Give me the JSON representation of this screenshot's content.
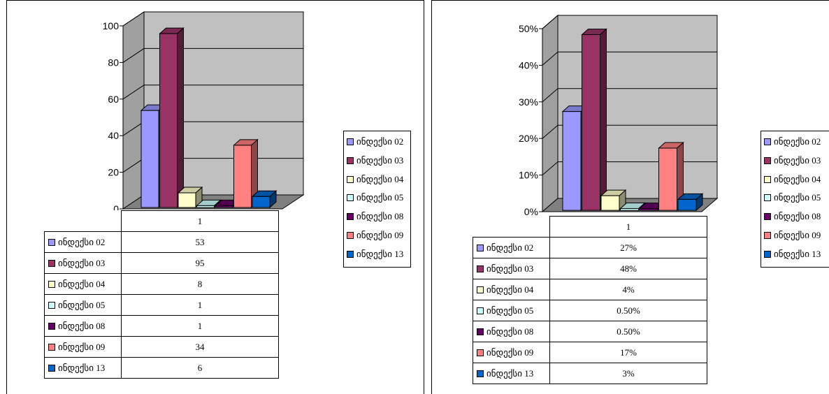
{
  "charts": [
    {
      "type": "bar",
      "category": "1",
      "yticks": [
        "0",
        "20",
        "40",
        "60",
        "80",
        "100"
      ],
      "ylim": [
        0,
        100
      ],
      "series": [
        {
          "name": "ინდექსი  02",
          "value": 53,
          "label": "53",
          "color": "#9999ff"
        },
        {
          "name": "ინდექსი  03",
          "value": 95,
          "label": "95",
          "color": "#993366"
        },
        {
          "name": "ინდექსი  04",
          "value": 8,
          "label": "8",
          "color": "#ffffcc"
        },
        {
          "name": "ინდექსი  05",
          "value": 1,
          "label": "1",
          "color": "#ccffff"
        },
        {
          "name": "ინდექსი  08",
          "value": 1,
          "label": "1",
          "color": "#660066"
        },
        {
          "name": "ინდექსი  09",
          "value": 34,
          "label": "34",
          "color": "#ff8080"
        },
        {
          "name": "ინდექსი  13",
          "value": 6,
          "label": "6",
          "color": "#0066cc"
        }
      ]
    },
    {
      "type": "bar",
      "category": "1",
      "yticks": [
        "0%",
        "10%",
        "20%",
        "30%",
        "40%",
        "50%"
      ],
      "ylim": [
        0,
        50
      ],
      "series": [
        {
          "name": "ინდექსი  02",
          "value": 27,
          "label": "27%",
          "color": "#9999ff"
        },
        {
          "name": "ინდექსი  03",
          "value": 48,
          "label": "48%",
          "color": "#993366"
        },
        {
          "name": "ინდექსი  04",
          "value": 4,
          "label": "4%",
          "color": "#ffffcc"
        },
        {
          "name": "ინდექსი  05",
          "value": 0.5,
          "label": "0.50%",
          "color": "#ccffff"
        },
        {
          "name": "ინდექსი  08",
          "value": 0.5,
          "label": "0.50%",
          "color": "#660066"
        },
        {
          "name": "ინდექსი  09",
          "value": 17,
          "label": "17%",
          "color": "#ff8080"
        },
        {
          "name": "ინდექსი  13",
          "value": 3,
          "label": "3%",
          "color": "#0066cc"
        }
      ]
    }
  ],
  "chart_data": [
    {
      "type": "bar",
      "categories": [
        "1"
      ],
      "ylim": [
        0,
        100
      ],
      "series": [
        {
          "name": "ინდექსი  02",
          "values": [
            53
          ]
        },
        {
          "name": "ინდექსი  03",
          "values": [
            95
          ]
        },
        {
          "name": "ინდექსი  04",
          "values": [
            8
          ]
        },
        {
          "name": "ინდექსი  05",
          "values": [
            1
          ]
        },
        {
          "name": "ინდექსი  08",
          "values": [
            1
          ]
        },
        {
          "name": "ინდექსი  09",
          "values": [
            34
          ]
        },
        {
          "name": "ინდექსი  13",
          "values": [
            6
          ]
        }
      ],
      "grid": true,
      "legend": "right"
    },
    {
      "type": "bar",
      "categories": [
        "1"
      ],
      "ylim": [
        0,
        50
      ],
      "series": [
        {
          "name": "ინდექსი  02",
          "values": [
            27
          ]
        },
        {
          "name": "ინდექსი  03",
          "values": [
            48
          ]
        },
        {
          "name": "ინდექსი  04",
          "values": [
            4
          ]
        },
        {
          "name": "ინდექსი  05",
          "values": [
            0.5
          ]
        },
        {
          "name": "ინდექსი  08",
          "values": [
            0.5
          ]
        },
        {
          "name": "ინდექსი  09",
          "values": [
            17
          ]
        },
        {
          "name": "ინდექსი  13",
          "values": [
            3
          ]
        }
      ],
      "grid": true,
      "legend": "right"
    }
  ]
}
